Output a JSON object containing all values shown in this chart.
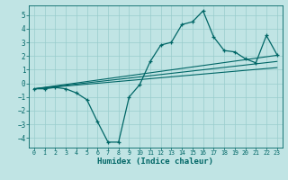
{
  "xlabel": "Humidex (Indice chaleur)",
  "bg_color": "#c0e4e4",
  "grid_color": "#99cccc",
  "line_color": "#006666",
  "xlim": [
    -0.5,
    23.5
  ],
  "ylim": [
    -4.7,
    5.7
  ],
  "xticks": [
    0,
    1,
    2,
    3,
    4,
    5,
    6,
    7,
    8,
    9,
    10,
    11,
    12,
    13,
    14,
    15,
    16,
    17,
    18,
    19,
    20,
    21,
    22,
    23
  ],
  "yticks": [
    -4,
    -3,
    -2,
    -1,
    0,
    1,
    2,
    3,
    4,
    5
  ],
  "main_x": [
    0,
    1,
    2,
    3,
    4,
    5,
    6,
    7,
    8,
    9,
    10,
    11,
    12,
    13,
    14,
    15,
    16,
    17,
    18,
    19,
    20,
    21,
    22,
    23
  ],
  "main_y": [
    -0.4,
    -0.4,
    -0.3,
    -0.4,
    -0.7,
    -1.2,
    -2.8,
    -4.3,
    -4.3,
    -1.0,
    -0.1,
    1.6,
    2.8,
    3.0,
    4.3,
    4.5,
    5.3,
    3.4,
    2.4,
    2.3,
    1.8,
    1.5,
    3.5,
    2.1
  ],
  "trend_lines": [
    {
      "x": [
        0,
        23
      ],
      "y": [
        -0.4,
        2.05
      ]
    },
    {
      "x": [
        0,
        23
      ],
      "y": [
        -0.4,
        1.6
      ]
    },
    {
      "x": [
        0,
        23
      ],
      "y": [
        -0.4,
        1.15
      ]
    }
  ],
  "tick_fontsize": 5.5,
  "xlabel_fontsize": 6.5
}
